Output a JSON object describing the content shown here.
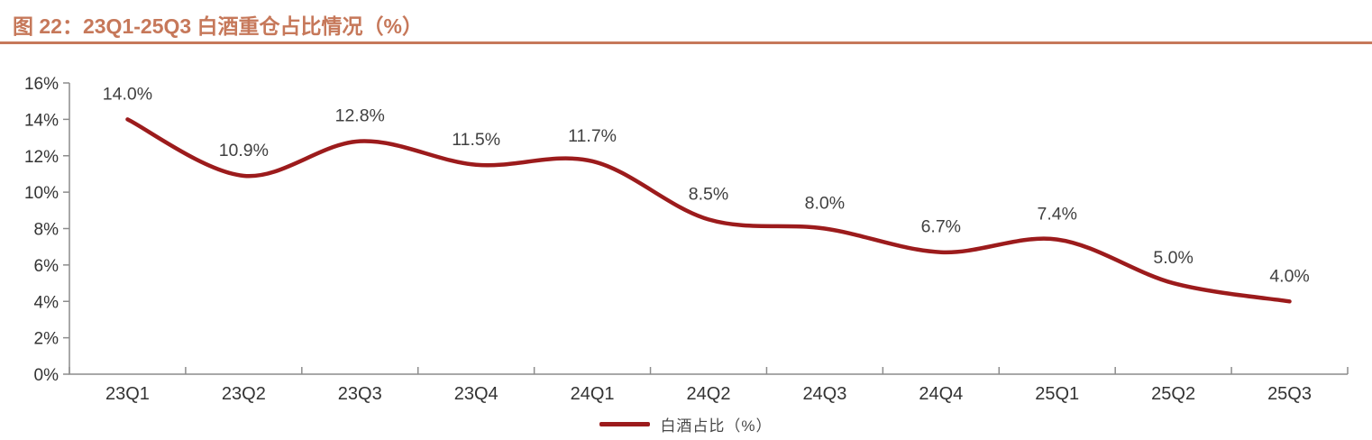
{
  "figure": {
    "title": "图 22：23Q1-25Q3 白酒重仓占比情况（%）"
  },
  "colors": {
    "accent": "#C6785A",
    "series": "#9C1B1C",
    "data_label": "#404040",
    "axis": "#8C8C8C",
    "tick_label": "#333333"
  },
  "chart_data": {
    "type": "line",
    "title": "23Q1-25Q3 白酒重仓占比情况（%）",
    "categories": [
      "23Q1",
      "23Q2",
      "23Q3",
      "23Q4",
      "24Q1",
      "24Q2",
      "24Q3",
      "24Q4",
      "25Q1",
      "25Q2",
      "25Q3"
    ],
    "series": [
      {
        "name": "白酒占比（%）",
        "values": [
          14.0,
          10.9,
          12.8,
          11.5,
          11.7,
          8.5,
          8.0,
          6.7,
          7.4,
          5.0,
          4.0
        ]
      }
    ],
    "point_labels": [
      "14.0%",
      "10.9%",
      "12.8%",
      "11.5%",
      "11.7%",
      "8.5%",
      "8.0%",
      "6.7%",
      "7.4%",
      "5.0%",
      "4.0%"
    ],
    "xlabel": "",
    "ylabel": "",
    "ylim": [
      0,
      16
    ],
    "ytick_step": 2,
    "ytick_labels": [
      "0%",
      "2%",
      "4%",
      "6%",
      "8%",
      "10%",
      "12%",
      "14%",
      "16%"
    ],
    "grid": false,
    "smooth": true,
    "legend_position": "bottom"
  },
  "legend": {
    "label": "白酒占比（%）"
  }
}
